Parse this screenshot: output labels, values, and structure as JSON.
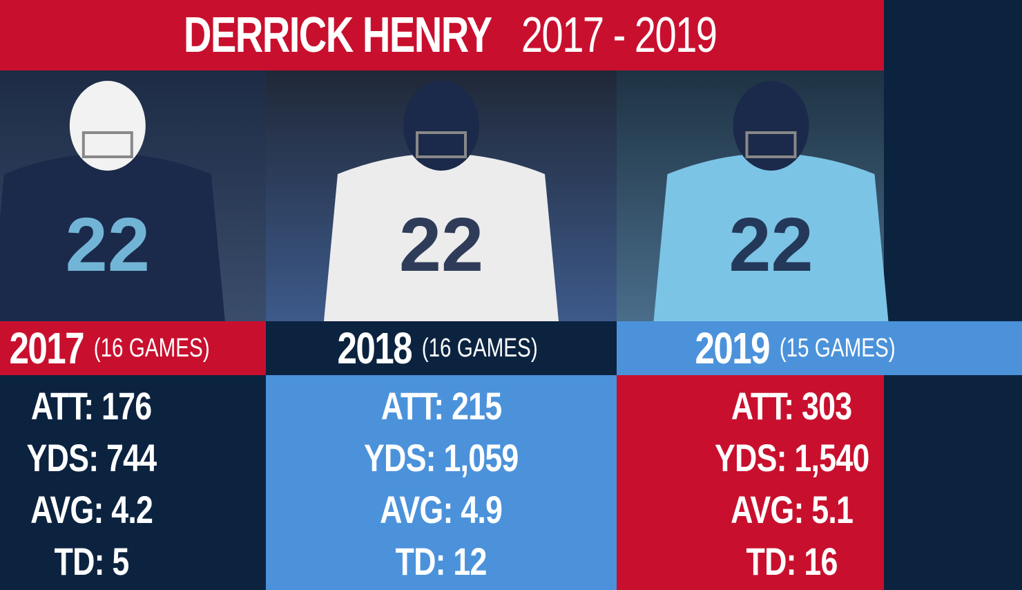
{
  "header": {
    "name": "DERRICK HENRY",
    "years": "2017 - 2019"
  },
  "columns": [
    {
      "year": "2017",
      "games": "(16 GAMES)",
      "stats": [
        {
          "label": "ATT:",
          "value": "176"
        },
        {
          "label": "YDS:",
          "value": "744"
        },
        {
          "label": "AVG:",
          "value": "4.2"
        },
        {
          "label": "TD:",
          "value": "5"
        }
      ]
    },
    {
      "year": "2018",
      "games": "(16 GAMES)",
      "stats": [
        {
          "label": "ATT:",
          "value": "215"
        },
        {
          "label": "YDS:",
          "value": "1,059"
        },
        {
          "label": "AVG:",
          "value": "4.9"
        },
        {
          "label": "TD:",
          "value": "12"
        }
      ]
    },
    {
      "year": "2019",
      "games": "(15 GAMES)",
      "stats": [
        {
          "label": "ATT:",
          "value": "303"
        },
        {
          "label": "YDS:",
          "value": "1,540"
        },
        {
          "label": "AVG:",
          "value": "5.1"
        },
        {
          "label": "TD:",
          "value": "16"
        }
      ]
    }
  ]
}
